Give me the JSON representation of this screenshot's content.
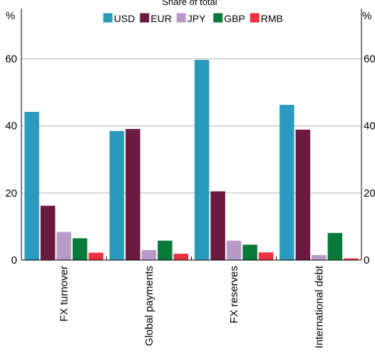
{
  "chart_data": {
    "type": "bar",
    "title": "Share of total",
    "y_unit_left": "%",
    "y_unit_right": "%",
    "categories": [
      "FX turnover",
      "Global payments",
      "FX reserves",
      "International debt"
    ],
    "series": [
      {
        "name": "USD",
        "color": "#2b9bbd",
        "values": [
          44.2,
          38.5,
          59.7,
          46.3
        ]
      },
      {
        "name": "EUR",
        "color": "#6b1a40",
        "values": [
          16.2,
          39.1,
          20.5,
          38.9
        ]
      },
      {
        "name": "JPY",
        "color": "#b99ac7",
        "values": [
          8.4,
          3.0,
          5.8,
          1.5
        ]
      },
      {
        "name": "GBP",
        "color": "#0a7a3a",
        "values": [
          6.5,
          5.8,
          4.6,
          8.1
        ]
      },
      {
        "name": "RMB",
        "color": "#ee3040",
        "values": [
          2.2,
          1.9,
          2.3,
          0.5
        ]
      }
    ],
    "ylim": [
      0,
      75
    ],
    "yticks": [
      0,
      20,
      40,
      60
    ],
    "grid": true,
    "legend_position": "top-center"
  }
}
